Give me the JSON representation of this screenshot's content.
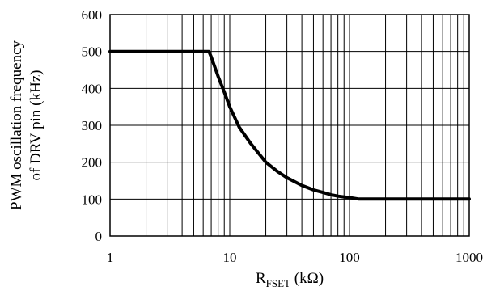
{
  "chart_data": {
    "type": "line",
    "title": "",
    "xlabel": {
      "main": "R",
      "subscript": "FSET",
      "units": " (kΩ)"
    },
    "ylabel": [
      "PWM oscillation frequency",
      "of DRV pin (kHz)"
    ],
    "xscale": "log",
    "xlim": [
      1,
      1000
    ],
    "ylim": [
      0,
      600
    ],
    "x_ticks": [
      {
        "value": 1,
        "label": "1"
      },
      {
        "value": 10,
        "label": "10"
      },
      {
        "value": 100,
        "label": "100"
      },
      {
        "value": 1000,
        "label": "1000"
      }
    ],
    "y_ticks": [
      {
        "value": 0,
        "label": "0"
      },
      {
        "value": 100,
        "label": "100"
      },
      {
        "value": 200,
        "label": "200"
      },
      {
        "value": 300,
        "label": "300"
      },
      {
        "value": 400,
        "label": "400"
      },
      {
        "value": 500,
        "label": "500"
      },
      {
        "value": 600,
        "label": "600"
      }
    ],
    "grid": true,
    "legend": "none",
    "series": [
      {
        "color": "#000000",
        "x": [
          1,
          2,
          4,
          6.7,
          7,
          8,
          9,
          10,
          12,
          15,
          20,
          25,
          30,
          40,
          50,
          60,
          70,
          80,
          100,
          120,
          200,
          500,
          1000
        ],
        "y": [
          500,
          500,
          500,
          500,
          485,
          432,
          390,
          350,
          295,
          250,
          200,
          175,
          158,
          137,
          125,
          118,
          112,
          108,
          104,
          100,
          100,
          100,
          100
        ]
      }
    ]
  }
}
